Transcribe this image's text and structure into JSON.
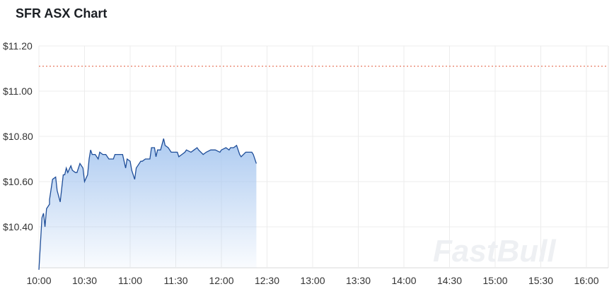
{
  "chart_data": {
    "type": "area",
    "title": "SFR ASX Chart",
    "xlabel": "",
    "ylabel": "",
    "x_ticks": [
      "10:00",
      "10:30",
      "11:00",
      "11:30",
      "12:00",
      "12:30",
      "13:00",
      "13:30",
      "14:00",
      "14:30",
      "15:00",
      "15:30",
      "16:00"
    ],
    "y_ticks": [
      "$10.40",
      "$10.60",
      "$10.80",
      "$11.00",
      "$11.20"
    ],
    "xlim": [
      "10:00",
      "16:15"
    ],
    "ylim": [
      10.22,
      11.2
    ],
    "grid": true,
    "reference_line": {
      "value": 11.11,
      "style": "dotted",
      "color": "#e0583a"
    },
    "line_color": "#1f4e99",
    "fill_color": "#a9c8f0",
    "series": [
      {
        "x": [
          "10:00",
          "10:02",
          "10:03",
          "10:04",
          "10:05",
          "10:07",
          "10:07",
          "10:09",
          "10:11",
          "10:12",
          "10:14",
          "10:16",
          "10:17",
          "10:18",
          "10:19",
          "10:21",
          "10:22",
          "10:24",
          "10:25",
          "10:27",
          "10:29",
          "10:30",
          "10:32",
          "10:33",
          "10:34",
          "10:35",
          "10:37",
          "10:39",
          "10:40",
          "10:42",
          "10:44",
          "10:46",
          "10:49",
          "10:50",
          "10:51",
          "10:54",
          "10:55",
          "10:57",
          "10:58",
          "11:00",
          "11:01",
          "11:03",
          "11:04",
          "11:07",
          "11:08",
          "11:10",
          "11:13",
          "11:14",
          "11:16",
          "11:17",
          "11:18",
          "11:20",
          "11:22",
          "11:23",
          "11:25",
          "11:27",
          "11:29",
          "11:31",
          "11:32",
          "11:34",
          "11:36",
          "11:37",
          "11:40",
          "11:42",
          "11:44",
          "11:45",
          "11:48",
          "11:50",
          "11:53",
          "11:56",
          "11:59",
          "12:00",
          "12:03",
          "12:05",
          "12:06",
          "12:08",
          "12:10",
          "12:12",
          "12:13",
          "12:16",
          "12:20",
          "12:21",
          "12:23"
        ],
        "y": [
          10.21,
          10.44,
          10.46,
          10.4,
          10.48,
          10.5,
          10.52,
          10.61,
          10.62,
          10.56,
          10.51,
          10.63,
          10.63,
          10.66,
          10.64,
          10.67,
          10.65,
          10.64,
          10.64,
          10.68,
          10.66,
          10.6,
          10.63,
          10.7,
          10.74,
          10.72,
          10.72,
          10.7,
          10.73,
          10.72,
          10.72,
          10.7,
          10.7,
          10.72,
          10.72,
          10.72,
          10.72,
          10.66,
          10.7,
          10.69,
          10.65,
          10.61,
          10.66,
          10.69,
          10.69,
          10.7,
          10.7,
          10.75,
          10.75,
          10.71,
          10.74,
          10.74,
          10.79,
          10.76,
          10.75,
          10.73,
          10.73,
          10.73,
          10.71,
          10.72,
          10.73,
          10.74,
          10.73,
          10.74,
          10.75,
          10.74,
          10.72,
          10.73,
          10.74,
          10.74,
          10.73,
          10.74,
          10.75,
          10.74,
          10.75,
          10.75,
          10.76,
          10.72,
          10.71,
          10.73,
          10.73,
          10.72,
          10.68
        ]
      }
    ]
  },
  "watermark": "FastBull"
}
